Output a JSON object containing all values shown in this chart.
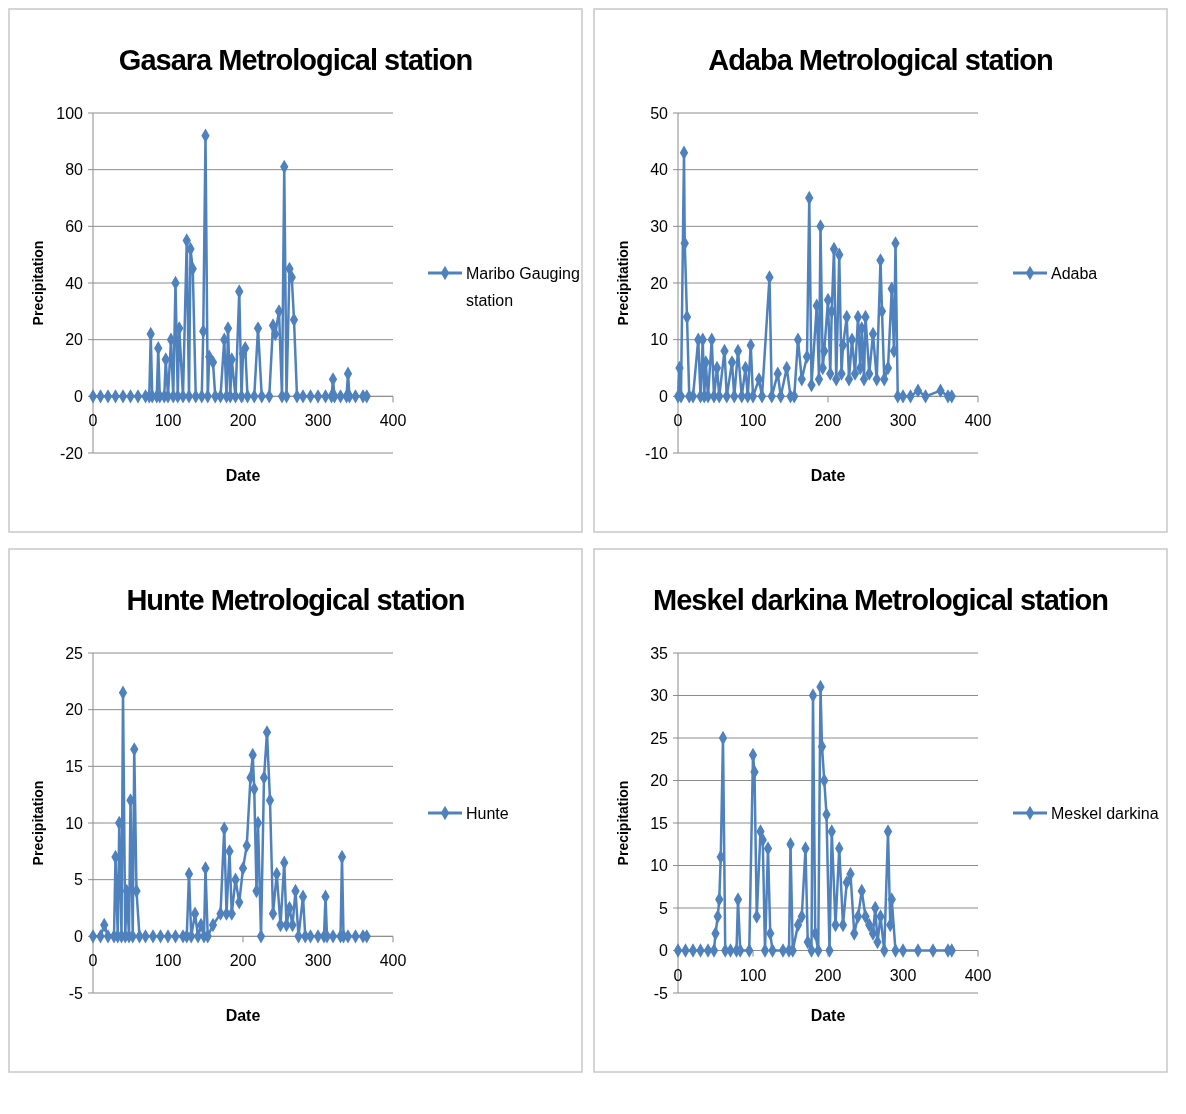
{
  "chart_data": [
    {
      "type": "line",
      "title": "Gasara Metrological station",
      "xlabel": "Date",
      "ylabel": "Precipitation",
      "xlim": [
        0,
        400
      ],
      "xticks": [
        0,
        100,
        200,
        300,
        400
      ],
      "ylim": [
        -20,
        100
      ],
      "yticks": [
        -20,
        0,
        20,
        40,
        60,
        80,
        100
      ],
      "grid": "y",
      "legend": "right",
      "marker": "diamond",
      "line_style": "solid",
      "x": [
        0,
        10,
        20,
        30,
        40,
        50,
        60,
        70,
        75,
        77,
        79,
        85,
        87,
        89,
        95,
        97,
        100,
        104,
        107,
        110,
        113,
        115,
        120,
        125,
        128,
        130,
        133,
        137,
        145,
        147,
        150,
        153,
        155,
        160,
        163,
        170,
        175,
        178,
        180,
        183,
        185,
        190,
        195,
        198,
        200,
        203,
        206,
        215,
        220,
        225,
        235,
        240,
        243,
        248,
        252,
        255,
        258,
        262,
        265,
        268,
        272,
        280,
        290,
        300,
        310,
        318,
        320,
        322,
        330,
        338,
        340,
        342,
        350,
        360,
        365
      ],
      "series": [
        {
          "name": "Maribo Gauging station",
          "color": "#4f81bd",
          "values": [
            0,
            0,
            0,
            0,
            0,
            0,
            0,
            0,
            0,
            22,
            0,
            0,
            17,
            0,
            0,
            13,
            0,
            20,
            0,
            40,
            0,
            24,
            0,
            55,
            0,
            52,
            45,
            0,
            0,
            23,
            92,
            0,
            14,
            12,
            0,
            0,
            20,
            0,
            24,
            0,
            13,
            0,
            37,
            0,
            15,
            17,
            0,
            0,
            24,
            0,
            0,
            25,
            22,
            30,
            0,
            81,
            0,
            45,
            42,
            27,
            0,
            0,
            0,
            0,
            0,
            0,
            6,
            0,
            0,
            0,
            8,
            0,
            0,
            0,
            0
          ]
        }
      ]
    },
    {
      "type": "line",
      "title": "Adaba Metrological station",
      "xlabel": "Date",
      "ylabel": "Precipitation",
      "xlim": [
        0,
        400
      ],
      "xticks": [
        0,
        100,
        200,
        300,
        400
      ],
      "ylim": [
        -10,
        50
      ],
      "yticks": [
        -10,
        0,
        10,
        20,
        30,
        40,
        50
      ],
      "grid": "y",
      "legend": "right",
      "marker": "diamond",
      "line_style": "solid",
      "x": [
        0,
        2,
        4,
        8,
        9,
        12,
        15,
        20,
        27,
        30,
        33,
        35,
        37,
        40,
        45,
        48,
        52,
        55,
        62,
        65,
        72,
        75,
        80,
        85,
        90,
        93,
        97,
        100,
        108,
        112,
        122,
        125,
        133,
        137,
        145,
        150,
        155,
        160,
        165,
        172,
        175,
        178,
        185,
        188,
        190,
        193,
        195,
        200,
        203,
        205,
        208,
        211,
        215,
        218,
        220,
        225,
        228,
        232,
        236,
        240,
        243,
        245,
        248,
        250,
        255,
        260,
        265,
        270,
        272,
        275,
        280,
        285,
        288,
        290,
        293,
        300,
        310,
        320,
        330,
        350,
        360,
        365
      ],
      "series": [
        {
          "name": "Adaba",
          "color": "#4f81bd",
          "values": [
            0,
            5,
            0,
            43,
            27,
            14,
            0,
            0,
            10,
            0,
            10,
            0,
            6,
            0,
            10,
            0,
            5,
            0,
            8,
            0,
            6,
            0,
            8,
            0,
            5,
            0,
            9,
            0,
            3,
            0,
            21,
            0,
            4,
            0,
            5,
            0,
            0,
            10,
            3,
            7,
            35,
            2,
            16,
            3,
            30,
            5,
            8,
            17,
            4,
            15,
            26,
            3,
            25,
            4,
            9,
            14,
            3,
            10,
            4,
            14,
            5,
            12,
            3,
            14,
            4,
            11,
            3,
            24,
            15,
            3,
            5,
            19,
            8,
            27,
            0,
            0,
            0,
            1,
            0,
            1,
            0,
            0
          ]
        }
      ]
    },
    {
      "type": "line",
      "title": "Hunte Metrological station",
      "xlabel": "Date",
      "ylabel": "Precipitation",
      "xlim": [
        0,
        400
      ],
      "xticks": [
        0,
        100,
        200,
        300,
        400
      ],
      "ylim": [
        -5,
        25
      ],
      "yticks": [
        -5,
        0,
        5,
        10,
        15,
        20,
        25
      ],
      "grid": "y",
      "legend": "right",
      "marker": "diamond",
      "line_style": "solid",
      "x": [
        0,
        10,
        15,
        20,
        28,
        30,
        33,
        35,
        38,
        40,
        43,
        45,
        48,
        50,
        53,
        55,
        58,
        62,
        70,
        80,
        90,
        100,
        110,
        120,
        125,
        128,
        131,
        136,
        140,
        144,
        148,
        150,
        153,
        160,
        170,
        175,
        178,
        182,
        185,
        190,
        195,
        200,
        205,
        210,
        213,
        215,
        218,
        220,
        224,
        228,
        232,
        236,
        240,
        245,
        250,
        255,
        258,
        262,
        266,
        270,
        274,
        280,
        283,
        290,
        300,
        308,
        310,
        312,
        320,
        330,
        332,
        334,
        340,
        350,
        360,
        365
      ],
      "series": [
        {
          "name": "Hunte",
          "color": "#4f81bd",
          "values": [
            0,
            0,
            1,
            0,
            0,
            7,
            0,
            10,
            0,
            21.5,
            0,
            4,
            0,
            12,
            0,
            16.5,
            4,
            0,
            0,
            0,
            0,
            0,
            0,
            0,
            0,
            5.5,
            0,
            2,
            0,
            1,
            0,
            6,
            0,
            1,
            2,
            9.5,
            2,
            7.5,
            2,
            5,
            3,
            6,
            8,
            14,
            16,
            13,
            4,
            10,
            0,
            14,
            18,
            12,
            2,
            5.5,
            1,
            6.5,
            1,
            2.5,
            1,
            4,
            0,
            3.5,
            0,
            0,
            0,
            0,
            3.5,
            0,
            0,
            0,
            7,
            0,
            0,
            0,
            0,
            0
          ]
        }
      ]
    },
    {
      "type": "line",
      "title": "Meskel darkina Metrological station",
      "xlabel": "Date",
      "ylabel": "Precipitation",
      "xlim": [
        0,
        400
      ],
      "xticks": [
        0,
        100,
        200,
        300,
        400
      ],
      "ylim": [
        -5,
        35
      ],
      "yticks": [
        -5,
        0,
        5,
        10,
        15,
        20,
        25,
        30,
        35
      ],
      "grid": "y",
      "legend": "right",
      "marker": "diamond",
      "line_style": "solid",
      "x": [
        0,
        10,
        20,
        30,
        40,
        48,
        50,
        53,
        55,
        57,
        60,
        63,
        70,
        78,
        80,
        83,
        95,
        100,
        102,
        105,
        110,
        113,
        116,
        120,
        123,
        126,
        140,
        148,
        150,
        153,
        160,
        165,
        170,
        173,
        178,
        180,
        183,
        187,
        190,
        192,
        195,
        198,
        202,
        205,
        210,
        215,
        220,
        225,
        230,
        235,
        240,
        245,
        250,
        255,
        260,
        263,
        266,
        270,
        275,
        280,
        283,
        285,
        290,
        300,
        320,
        340,
        360,
        365
      ],
      "series": [
        {
          "name": "Meskel darkina",
          "color": "#4f81bd",
          "values": [
            0,
            0,
            0,
            0,
            0,
            0,
            2,
            4,
            6,
            11,
            25,
            0,
            0,
            0,
            6,
            0,
            0,
            23,
            21,
            4,
            14,
            13,
            0,
            12,
            2,
            0,
            0,
            0,
            12.5,
            0,
            3,
            4,
            12,
            1,
            0,
            30,
            2,
            0,
            31,
            24,
            20,
            16,
            0,
            14,
            3,
            12,
            3,
            8,
            9,
            2,
            4,
            7,
            4,
            3,
            2,
            5,
            1,
            4,
            0,
            14,
            3,
            6,
            0,
            0,
            0,
            0,
            0,
            0
          ]
        }
      ]
    }
  ]
}
